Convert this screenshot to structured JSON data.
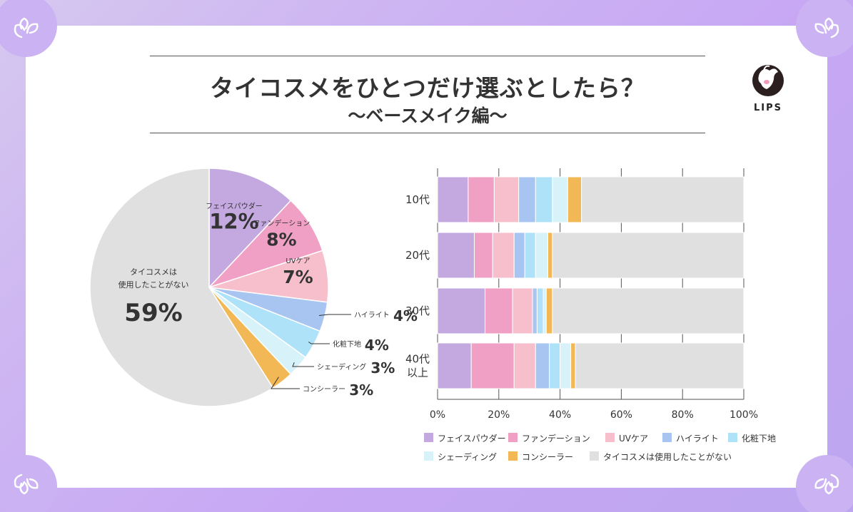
{
  "title": "タイコスメをひとつだけ選ぶとしたら？",
  "subtitle": "〜ベースメイク編〜",
  "brand": "LIPS",
  "colors": {
    "フェイスパウダー": "#c3a9e0",
    "ファンデーション": "#f0a0c4",
    "UVケア": "#f7bfcc",
    "ハイライト": "#a8c4f0",
    "化粧下地": "#ade2f8",
    "シェーディング": "#d8f2fa",
    "コンシーラー": "#f2b856",
    "タイコスメは使用したことがない": "#e0e0e0"
  },
  "chart_data": [
    {
      "type": "pie",
      "slices": [
        {
          "label": "フェイスパウダー",
          "value": 12,
          "display": "12%"
        },
        {
          "label": "ファンデーション",
          "value": 8,
          "display": "8%"
        },
        {
          "label": "UVケア",
          "value": 7,
          "display": "7%"
        },
        {
          "label": "ハイライト",
          "value": 4,
          "display": "4%"
        },
        {
          "label": "化粧下地",
          "value": 4,
          "display": "4%"
        },
        {
          "label": "シェーディング",
          "value": 3,
          "display": "3%"
        },
        {
          "label": "コンシーラー",
          "value": 3,
          "display": "3%"
        },
        {
          "label": "タイコスメは使用したことがない",
          "label_lines": [
            "タイコスメは",
            "使用したことがない"
          ],
          "value": 59,
          "display": "59%"
        }
      ]
    },
    {
      "type": "bar",
      "orientation": "horizontal",
      "stacked": true,
      "categories": [
        "10代",
        "20代",
        "30代",
        "40代"
      ],
      "category_lines": [
        [
          "10代"
        ],
        [
          "20代"
        ],
        [
          "30代"
        ],
        [
          "40代",
          "以上"
        ]
      ],
      "series": [
        {
          "name": "フェイスパウダー",
          "values": [
            10,
            12,
            15.5,
            11
          ]
        },
        {
          "name": "ファンデーション",
          "values": [
            8.5,
            6,
            9,
            14
          ]
        },
        {
          "name": "UVケア",
          "values": [
            8,
            7,
            6.5,
            7
          ]
        },
        {
          "name": "ハイライト",
          "values": [
            5.5,
            3.5,
            1.5,
            4.5
          ]
        },
        {
          "name": "化粧下地",
          "values": [
            5.5,
            3.5,
            2,
            3.5
          ]
        },
        {
          "name": "シェーディング",
          "values": [
            5,
            4,
            1,
            3.5
          ]
        },
        {
          "name": "コンシーラー",
          "values": [
            4.5,
            1.5,
            2,
            1.5
          ]
        },
        {
          "name": "タイコスメは使用したことがない",
          "values": [
            53,
            62.5,
            62.5,
            55
          ]
        }
      ],
      "xticks": [
        "0%",
        "20%",
        "40%",
        "60%",
        "80%",
        "100%"
      ],
      "xlim": [
        0,
        100
      ],
      "grid": true,
      "legend": "bottom"
    }
  ]
}
